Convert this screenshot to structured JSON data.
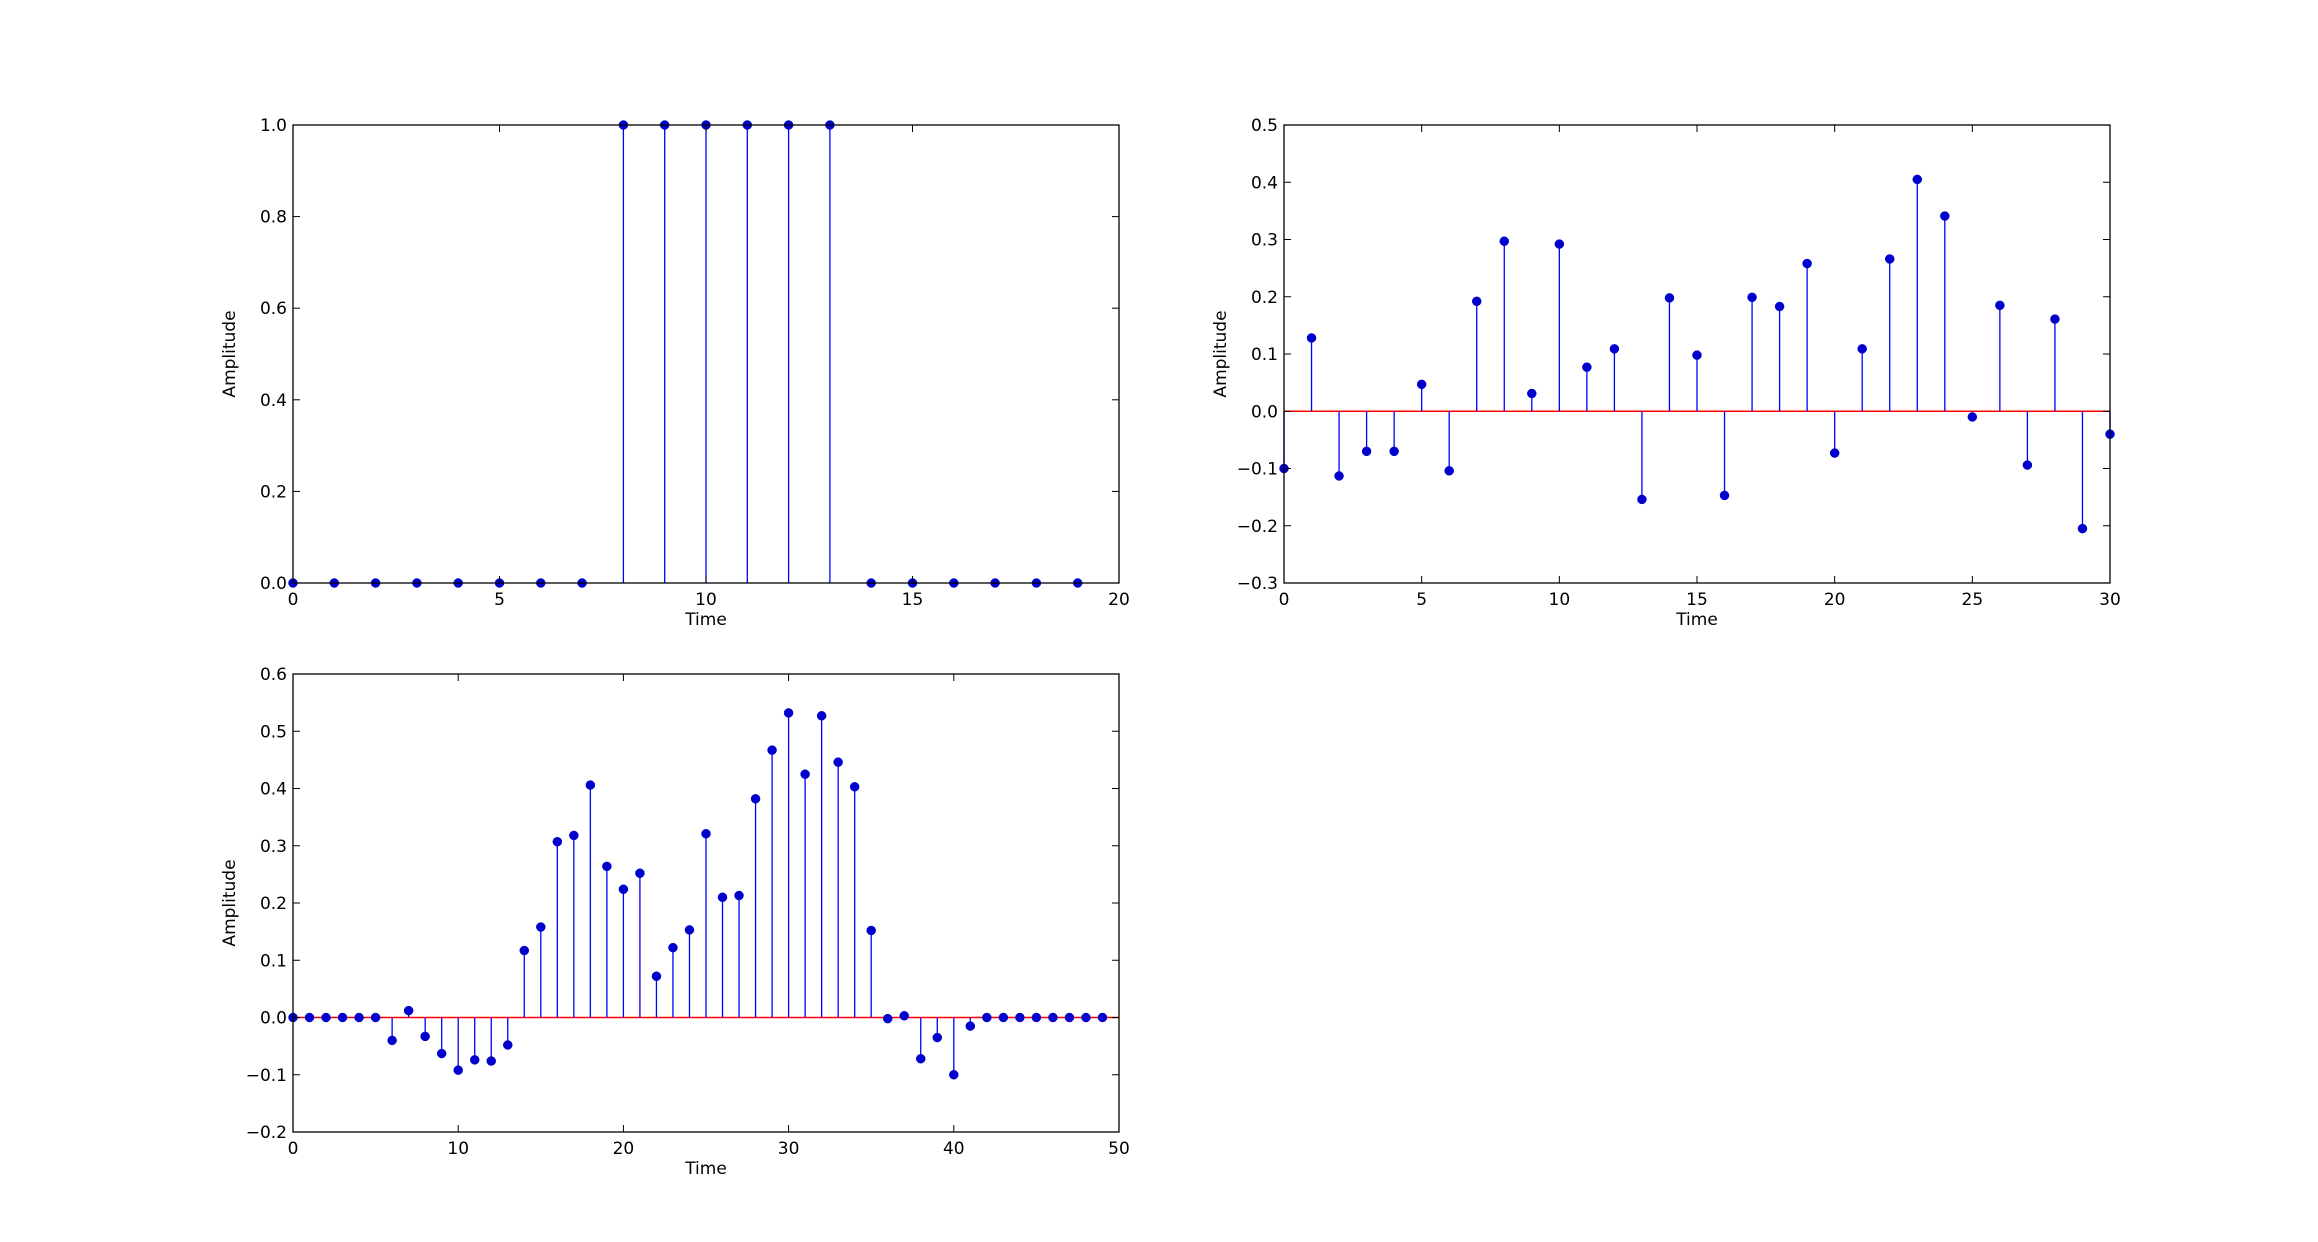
{
  "colors": {
    "stem": "#0000ff",
    "marker": "#0000cc",
    "baseline": "#ff0000",
    "axes": "#000000",
    "background": "#ffffff"
  },
  "chart_data": [
    {
      "type": "stem",
      "xlabel": "Time",
      "ylabel": "Amplitude",
      "xlim": [
        0,
        20
      ],
      "ylim": [
        0,
        1.0
      ],
      "xticks": [
        0,
        5,
        10,
        15,
        20
      ],
      "xtick_labels": [
        "0",
        "5",
        "10",
        "15",
        "20"
      ],
      "yticks": [
        0.0,
        0.2,
        0.4,
        0.6,
        0.8,
        1.0
      ],
      "ytick_labels": [
        "0.0",
        "0.2",
        "0.4",
        "0.6",
        "0.8",
        "1.0"
      ],
      "grid": false,
      "baseline": false,
      "x": [
        0,
        1,
        2,
        3,
        4,
        5,
        6,
        7,
        8,
        9,
        10,
        11,
        12,
        13,
        14,
        15,
        16,
        17,
        18,
        19
      ],
      "y": [
        0,
        0,
        0,
        0,
        0,
        0,
        0,
        0,
        1,
        1,
        1,
        1,
        1,
        1,
        0,
        0,
        0,
        0,
        0,
        0
      ]
    },
    {
      "type": "stem",
      "xlabel": "Time",
      "ylabel": "Amplitude",
      "xlim": [
        0,
        30
      ],
      "ylim": [
        -0.3,
        0.5
      ],
      "xticks": [
        0,
        5,
        10,
        15,
        20,
        25,
        30
      ],
      "xtick_labels": [
        "0",
        "5",
        "10",
        "15",
        "20",
        "25",
        "30"
      ],
      "yticks": [
        -0.3,
        -0.2,
        -0.1,
        0.0,
        0.1,
        0.2,
        0.3,
        0.4,
        0.5
      ],
      "ytick_labels": [
        "−0.3",
        "−0.2",
        "−0.1",
        "0.0",
        "0.1",
        "0.2",
        "0.3",
        "0.4",
        "0.5"
      ],
      "grid": false,
      "baseline": true,
      "x": [
        0,
        1,
        2,
        3,
        4,
        5,
        6,
        7,
        8,
        9,
        10,
        11,
        12,
        13,
        14,
        15,
        16,
        17,
        18,
        19,
        20,
        21,
        22,
        23,
        24,
        25,
        26,
        27,
        28,
        29,
        30
      ],
      "y": [
        -0.1,
        0.128,
        -0.113,
        -0.07,
        -0.07,
        0.047,
        -0.104,
        0.192,
        0.297,
        0.031,
        0.292,
        0.077,
        0.109,
        -0.154,
        0.198,
        0.098,
        -0.147,
        0.199,
        0.183,
        0.258,
        -0.073,
        0.109,
        0.266,
        0.405,
        0.341,
        -0.01,
        0.185,
        -0.094,
        0.161,
        -0.205,
        -0.04
      ]
    },
    {
      "type": "stem",
      "xlabel": "Time",
      "ylabel": "Amplitude",
      "xlim": [
        0,
        50
      ],
      "ylim": [
        -0.2,
        0.6
      ],
      "xticks": [
        0,
        10,
        20,
        30,
        40,
        50
      ],
      "xtick_labels": [
        "0",
        "10",
        "20",
        "30",
        "40",
        "50"
      ],
      "yticks": [
        -0.2,
        -0.1,
        0.0,
        0.1,
        0.2,
        0.3,
        0.4,
        0.5,
        0.6
      ],
      "ytick_labels": [
        "−0.2",
        "−0.1",
        "0.0",
        "0.1",
        "0.2",
        "0.3",
        "0.4",
        "0.5",
        "0.6"
      ],
      "grid": false,
      "baseline": true,
      "x": [
        0,
        1,
        2,
        3,
        4,
        5,
        6,
        7,
        8,
        9,
        10,
        11,
        12,
        13,
        14,
        15,
        16,
        17,
        18,
        19,
        20,
        21,
        22,
        23,
        24,
        25,
        26,
        27,
        28,
        29,
        30,
        31,
        32,
        33,
        34,
        35,
        36,
        37,
        38,
        39,
        40,
        41,
        42,
        43,
        44,
        45,
        46,
        47,
        48,
        49
      ],
      "y": [
        0,
        0,
        0,
        0,
        0,
        0,
        -0.04,
        0.012,
        -0.033,
        -0.063,
        -0.092,
        -0.074,
        -0.076,
        -0.048,
        0.117,
        0.158,
        0.307,
        0.318,
        0.406,
        0.264,
        0.224,
        0.252,
        0.072,
        0.122,
        0.153,
        0.321,
        0.21,
        0.213,
        0.382,
        0.467,
        0.532,
        0.425,
        0.527,
        0.446,
        0.403,
        0.152,
        -0.002,
        0.003,
        -0.072,
        -0.035,
        -0.1,
        -0.015,
        0,
        0,
        0,
        0,
        0,
        0,
        0,
        0
      ]
    }
  ]
}
